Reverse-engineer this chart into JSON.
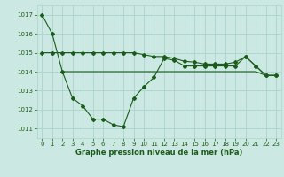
{
  "bg_color": "#cbe8e2",
  "grid_color": "#aad4cc",
  "line_color": "#1a5c1a",
  "label_color": "#1a5c1a",
  "xlabel": "Graphe pression niveau de la mer (hPa)",
  "xlim": [
    -0.5,
    23.5
  ],
  "ylim": [
    1010.5,
    1017.5
  ],
  "yticks": [
    1011,
    1012,
    1013,
    1014,
    1015,
    1016,
    1017
  ],
  "xticks": [
    0,
    1,
    2,
    3,
    4,
    5,
    6,
    7,
    8,
    9,
    10,
    11,
    12,
    13,
    14,
    15,
    16,
    17,
    18,
    19,
    20,
    21,
    22,
    23
  ],
  "series1_x": [
    0,
    1,
    2,
    3,
    4,
    5,
    6,
    7,
    8,
    9,
    10,
    11,
    12,
    13,
    14,
    15,
    16,
    17,
    18,
    19,
    20,
    21,
    22,
    23
  ],
  "series1_y": [
    1017.0,
    1016.0,
    1014.0,
    1012.6,
    1012.2,
    1011.5,
    1011.5,
    1011.2,
    1011.1,
    1012.6,
    1013.2,
    1013.7,
    1014.7,
    1014.6,
    1014.3,
    1014.3,
    1014.3,
    1014.3,
    1014.3,
    1014.3,
    1014.8,
    1014.3,
    1013.8,
    1013.8
  ],
  "series2_x": [
    0,
    1,
    2,
    3,
    4,
    5,
    6,
    7,
    8,
    9,
    10,
    11,
    12,
    13,
    14,
    15,
    16,
    17,
    18,
    19,
    20,
    21,
    22,
    23
  ],
  "series2_y": [
    1015.0,
    1015.0,
    1015.0,
    1015.0,
    1015.0,
    1015.0,
    1015.0,
    1015.0,
    1015.0,
    1015.0,
    1014.9,
    1014.8,
    1014.8,
    1014.7,
    1014.55,
    1014.5,
    1014.4,
    1014.4,
    1014.4,
    1014.5,
    1014.8,
    1014.3,
    1013.8,
    1013.8
  ],
  "series3_x": [
    2,
    3,
    4,
    5,
    6,
    7,
    8,
    9,
    10,
    11,
    12,
    13,
    14,
    15,
    16,
    17,
    18,
    19,
    20,
    21,
    22,
    23
  ],
  "series3_y": [
    1014.0,
    1014.0,
    1014.0,
    1014.0,
    1014.0,
    1014.0,
    1014.0,
    1014.0,
    1014.0,
    1014.0,
    1014.0,
    1014.0,
    1014.0,
    1014.0,
    1014.0,
    1014.0,
    1014.0,
    1014.0,
    1014.0,
    1014.0,
    1013.8,
    1013.8
  ],
  "tick_fontsize": 5.0,
  "xlabel_fontsize": 6.0,
  "marker_size": 2.0,
  "line_width": 0.8
}
